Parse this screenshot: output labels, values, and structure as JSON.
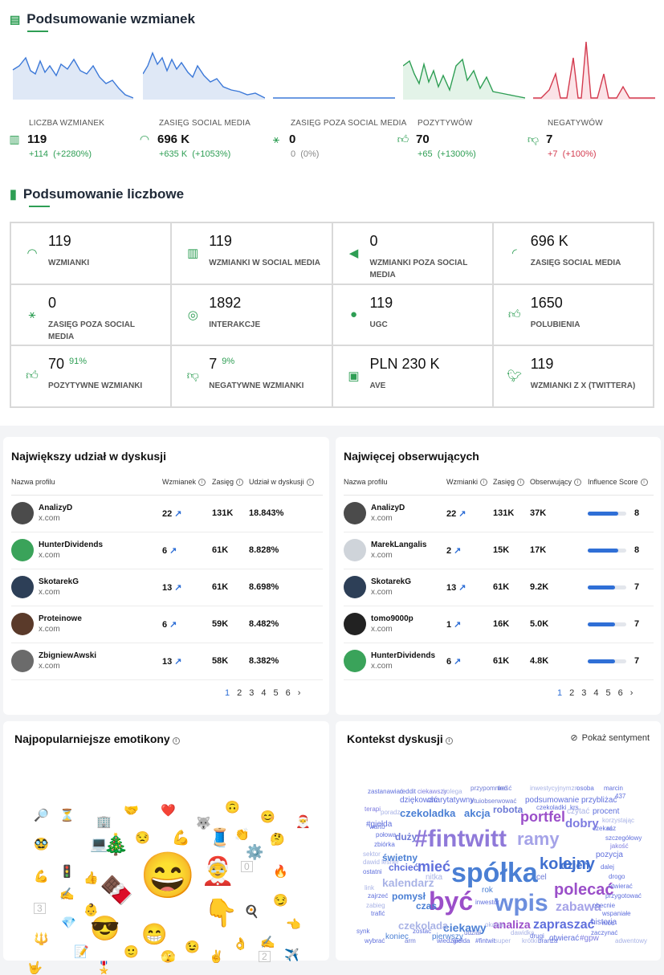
{
  "summary": {
    "title": "Podsumowanie wzmianek",
    "metrics": [
      {
        "label": "LICZBA WZMIANEK",
        "value": "119",
        "change": "+114",
        "change_pct": "(+2280%)",
        "icon": "bar-chart-icon"
      },
      {
        "label": "ZASIĘG SOCIAL MEDIA",
        "value": "696 K",
        "change": "+635 K",
        "change_pct": "(+1053%)",
        "icon": "wifi-icon"
      },
      {
        "label": "ZASIĘG POZA SOCIAL MEDIA",
        "value": "0",
        "change": "0",
        "change_pct": "(0%)",
        "icon": "network-icon"
      },
      {
        "label": "POZYTYWÓW",
        "value": "70",
        "change": "+65",
        "change_pct": "(+1300%)",
        "icon": "thumbs-up-icon"
      },
      {
        "label": "NEGATYWÓW",
        "value": "7",
        "change": "+7",
        "change_pct": "(+100%)",
        "icon": "thumbs-down-icon"
      }
    ],
    "colors": {
      "blue": "#3b78d8",
      "green": "#2e9e54",
      "red": "#d33a4e"
    }
  },
  "numeric": {
    "title": "Podsumowanie liczbowe",
    "cells": [
      {
        "value": "119",
        "label": "WZMIANKI",
        "icon": "wifi-icon"
      },
      {
        "value": "119",
        "label": "WZMIANKI W SOCIAL MEDIA",
        "icon": "bar-chart-icon"
      },
      {
        "value": "0",
        "label": "WZMIANKI POZA SOCIAL MEDIA",
        "icon": "megaphone-icon"
      },
      {
        "value": "696 K",
        "label": "ZASIĘG SOCIAL MEDIA",
        "icon": "rss-icon"
      },
      {
        "value": "0",
        "label": "ZASIĘG POZA SOCIAL MEDIA",
        "icon": "network-icon"
      },
      {
        "value": "1892",
        "label": "INTERAKCJE",
        "icon": "target-icon"
      },
      {
        "value": "119",
        "label": "UGC",
        "icon": "user-icon"
      },
      {
        "value": "1650",
        "label": "POLUBIENIA",
        "icon": "thumbs-up-icon"
      },
      {
        "value": "70",
        "sup": "91%",
        "label": "POZYTYWNE WZMIANKI",
        "icon": "thumbs-up-icon"
      },
      {
        "value": "7",
        "sup": "9%",
        "label": "NEGATYWNE WZMIANKI",
        "icon": "thumbs-down-icon"
      },
      {
        "value": "PLN 230 K",
        "label": "AVE",
        "icon": "money-icon"
      },
      {
        "value": "119",
        "label": "WZMIANKI Z X (TWITTERA)",
        "icon": "twitter-icon"
      }
    ]
  },
  "share": {
    "title": "Największy udział w dyskusji",
    "headers": [
      "Nazwa profilu",
      "Wzmianek",
      "Zasięg",
      "Udział w dyskusji"
    ],
    "rows": [
      {
        "name": "AnalizyD",
        "domain": "x.com",
        "mentions": "22",
        "reach": "131K",
        "share": "18.843%"
      },
      {
        "name": "HunterDividends",
        "domain": "x.com",
        "mentions": "6",
        "reach": "61K",
        "share": "8.828%"
      },
      {
        "name": "SkotarekG",
        "domain": "x.com",
        "mentions": "13",
        "reach": "61K",
        "share": "8.698%"
      },
      {
        "name": "Proteinowe",
        "domain": "x.com",
        "mentions": "6",
        "reach": "59K",
        "share": "8.482%"
      },
      {
        "name": "ZbigniewAwski",
        "domain": "x.com",
        "mentions": "13",
        "reach": "58K",
        "share": "8.382%"
      }
    ],
    "pages": [
      "1",
      "2",
      "3",
      "4",
      "5",
      "6",
      "›"
    ]
  },
  "followers": {
    "title": "Najwięcej obserwujących",
    "headers": [
      "Nazwa profilu",
      "Wzmianki",
      "Zasięg",
      "Obserwujący",
      "Influence Score"
    ],
    "rows": [
      {
        "name": "AnalizyD",
        "domain": "x.com",
        "mentions": "22",
        "reach": "131K",
        "followers": "37K",
        "score": 8
      },
      {
        "name": "MarekLangalis",
        "domain": "x.com",
        "mentions": "2",
        "reach": "15K",
        "followers": "17K",
        "score": 8
      },
      {
        "name": "SkotarekG",
        "domain": "x.com",
        "mentions": "13",
        "reach": "61K",
        "followers": "9.2K",
        "score": 7
      },
      {
        "name": "tomo9000p",
        "domain": "x.com",
        "mentions": "1",
        "reach": "16K",
        "followers": "5.0K",
        "score": 7
      },
      {
        "name": "HunterDividends",
        "domain": "x.com",
        "mentions": "6",
        "reach": "61K",
        "followers": "4.8K",
        "score": 7
      }
    ],
    "pages": [
      "1",
      "2",
      "3",
      "4",
      "5",
      "6",
      "›"
    ]
  },
  "emoji": {
    "title": "Najpopularniejsze emotikony",
    "items": [
      "😄",
      "🤶",
      "🍫",
      "😎",
      "👇",
      "🎄",
      "😁",
      "🧵",
      "🔎",
      "⏳",
      "🏢",
      "🤝",
      "❤️",
      "🐺",
      "🙃",
      "😊",
      "🎅",
      "🥸",
      "💻",
      "😒",
      "💪",
      "👏",
      "⚙️",
      "🤔",
      "🔥",
      "💪",
      "🚦",
      "👍",
      "0",
      "✍️",
      "👶",
      "😏",
      "3",
      "💎",
      "🍳",
      "👈",
      "🔱",
      "📝",
      "🙂",
      "🫣",
      "😉",
      "✌️",
      "👌",
      "✍️",
      "2",
      "✈️",
      "🤟",
      "🎖️",
      "1"
    ]
  },
  "context": {
    "title": "Kontekst dyskusji",
    "toggle_label": "Pokaż sentyment",
    "words": [
      "spółka",
      "#fintwitt",
      "być",
      "wpis",
      "kolejny",
      "portfel",
      "mieć",
      "ramy",
      "polecać",
      "analiza",
      "zapraszać",
      "dzień",
      "dobry",
      "ciekawy",
      "czekolada",
      "czekoladka",
      "akcja",
      "robota",
      "zabawa",
      "kalendarz",
      "świetny",
      "chcieć",
      "pomysł",
      "czas",
      "#giełda",
      "duży",
      "koniec",
      "pierwszy",
      "otwierać",
      "#gpw",
      "historia",
      "pozycja",
      "cel",
      "nitka",
      "rok",
      "czytać",
      "procent",
      "podsumowanie",
      "przybliżać",
      "dziękować",
      "charytatywny",
      "zastanawiać",
      "reddit",
      "ciekawszy",
      "kolega",
      "przypomnieć",
      "treść",
      "inwestycyjnymzn",
      "osoba",
      "marcin",
      "437",
      "terapi",
      "poradz",
      "#tuiobserwować",
      "czekoladki",
      "krs",
      "czekać",
      "raz",
      "korzystając",
      "szczegółowy",
      "jakość",
      "warto",
      "połowa",
      "zbiórka",
      "sektor",
      "dawid leśner",
      "ostatni",
      "link",
      "zajrzeć",
      "zabieg",
      "trafić",
      "synk",
      "wybrać",
      "zostać",
      "arm",
      "inwestor",
      "okazja",
      "dawidka",
      "drugi",
      "dalej",
      "drogo",
      "otwierać",
      "przygotować",
      "obecnie",
      "wspaniałe",
      "móc",
      "zaczynać",
      "adwentowy",
      "udział",
      "#fintwit",
      "super",
      "krótki",
      "branża",
      "wiedzieć",
      "giełda",
      "czekoladka",
      "wziąć",
      "polskainwestować"
    ]
  }
}
